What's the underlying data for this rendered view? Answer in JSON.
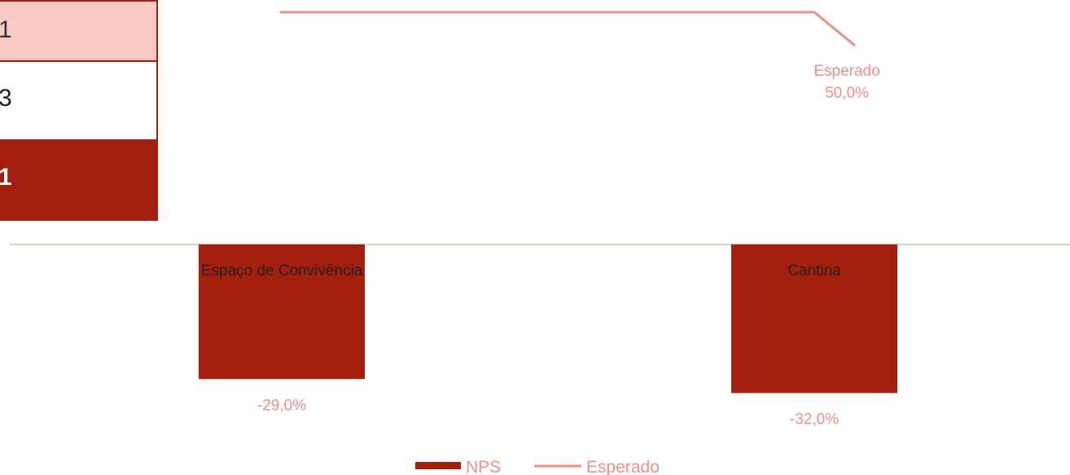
{
  "table": {
    "rows": [
      {
        "text": "1"
      },
      {
        "text": "3"
      },
      {
        "text": "1"
      }
    ]
  },
  "chart_data": {
    "type": "bar",
    "categories": [
      "Espaço de Convivência",
      "Cantina"
    ],
    "series": [
      {
        "name": "NPS",
        "type": "bar",
        "values": [
          -29.0,
          -32.0
        ],
        "labels": [
          "-29,0%",
          "-32,0%"
        ],
        "color": "#a41f0e"
      },
      {
        "name": "Esperado",
        "type": "line",
        "values": [
          50.0,
          50.0
        ],
        "labels": [
          "Esperado\n50,0%"
        ],
        "color": "#f08f86"
      }
    ],
    "legend": {
      "position": "bottom",
      "items": [
        "NPS",
        "Esperado"
      ]
    },
    "colors": {
      "bar": "#a41f0e",
      "line": "#f08f86",
      "axis": "#f2c7c2"
    }
  }
}
